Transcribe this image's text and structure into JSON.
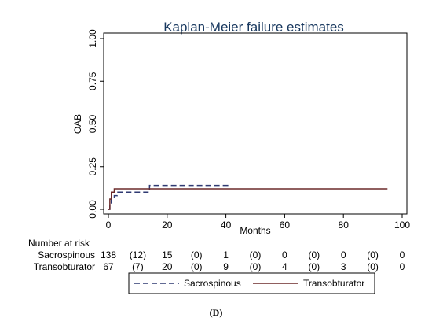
{
  "chart_data": {
    "type": "line",
    "title": "Kaplan-Meier failure estimates",
    "xlabel": "Months",
    "ylabel": "OAB",
    "xlim": [
      0,
      100
    ],
    "ylim": [
      0,
      1
    ],
    "x_ticks": [
      0,
      20,
      40,
      60,
      80,
      100
    ],
    "y_ticks": [
      0.0,
      0.25,
      0.5,
      0.75,
      1.0
    ],
    "y_tick_labels": [
      "0.00",
      "0.25",
      "0.50",
      "0.75",
      "1.00"
    ],
    "grid": false,
    "legend_position": "bottom",
    "series": [
      {
        "name": "Sacrospinous",
        "style": "dashed",
        "color": "#2f3a72",
        "steps": [
          [
            0,
            0.0
          ],
          [
            0.5,
            0.03
          ],
          [
            1,
            0.06
          ],
          [
            2,
            0.08
          ],
          [
            3,
            0.1
          ],
          [
            14,
            0.14
          ],
          [
            41,
            0.14
          ]
        ]
      },
      {
        "name": "Transobturator",
        "style": "solid",
        "color": "#6b2a2a",
        "steps": [
          [
            0,
            0.0
          ],
          [
            0.5,
            0.06
          ],
          [
            1,
            0.1
          ],
          [
            2,
            0.12
          ],
          [
            95,
            0.12
          ]
        ]
      }
    ]
  },
  "risk_table": {
    "header": "Number at risk",
    "rows": [
      {
        "label": "Sacrospinous",
        "values": [
          "138",
          "(12)",
          "15",
          "(0)",
          "1",
          "(0)",
          "0",
          "(0)",
          "0",
          "(0)",
          "0"
        ]
      },
      {
        "label": "Transobturator",
        "values": [
          "67",
          "(7)",
          "20",
          "(0)",
          "9",
          "(0)",
          "4",
          "(0)",
          "3",
          "(0)",
          "0"
        ]
      }
    ]
  },
  "panel_label": "(D)"
}
